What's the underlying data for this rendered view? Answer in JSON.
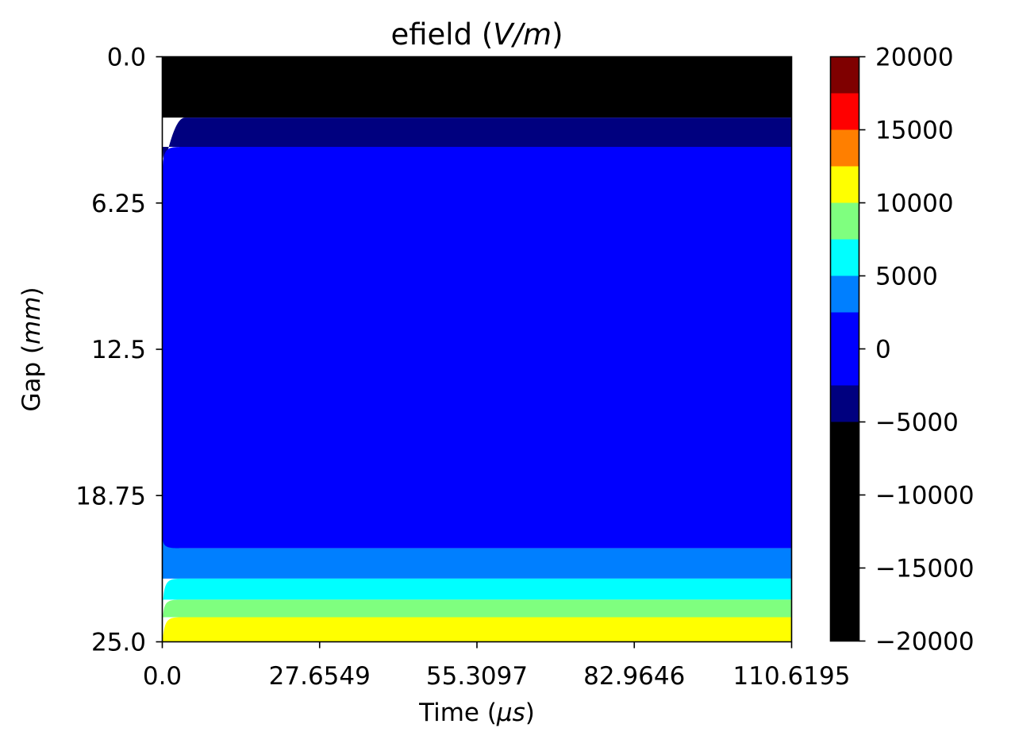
{
  "chart_data": {
    "type": "heatmap",
    "title": "efield (V/m)",
    "xlabel": "Time (μs)",
    "ylabel": "Gap (mm)",
    "xlim": [
      0.0,
      110.6195
    ],
    "ylim": [
      0.0,
      25.0
    ],
    "y_inverted": true,
    "x_ticks": [
      "0.0",
      "27.6549",
      "55.3097",
      "82.9646",
      "110.6195"
    ],
    "y_ticks": [
      "0.0",
      "6.25",
      "12.5",
      "18.75",
      "25.0"
    ],
    "colorbar": {
      "range": [
        -20000,
        20000
      ],
      "ticks": [
        "20000",
        "15000",
        "10000",
        "5000",
        "0",
        "−5000",
        "−10000",
        "−15000",
        "−20000"
      ],
      "levels": [
        -20000,
        -5000,
        -2500,
        2500,
        5000,
        7500,
        10000,
        12500,
        15000,
        17500,
        20000
      ],
      "colors": [
        "#000000",
        "#00007f",
        "#0000ff",
        "#007fff",
        "#00ffff",
        "#7fff7f",
        "#ffff00",
        "#ff7f00",
        "#ff0000",
        "#7f0000"
      ]
    },
    "bands": [
      {
        "level": "black",
        "color": "#000000",
        "gap_from": 0.0,
        "gap_to": 2.6
      },
      {
        "level": "navy",
        "color": "#00007f",
        "gap_from": 2.6,
        "gap_to": 3.85
      },
      {
        "level": "blue",
        "color": "#0000ff",
        "gap_from": 3.85,
        "gap_to": 21.0
      },
      {
        "level": "azure",
        "color": "#007fff",
        "gap_from": 21.0,
        "gap_to": 22.3
      },
      {
        "level": "cyan",
        "color": "#00ffff",
        "gap_from": 22.3,
        "gap_to": 23.2
      },
      {
        "level": "light-green",
        "color": "#7fff7f",
        "gap_from": 23.2,
        "gap_to": 23.95
      },
      {
        "level": "yellow",
        "color": "#ffff00",
        "gap_from": 23.95,
        "gap_to": 25.0
      }
    ]
  }
}
